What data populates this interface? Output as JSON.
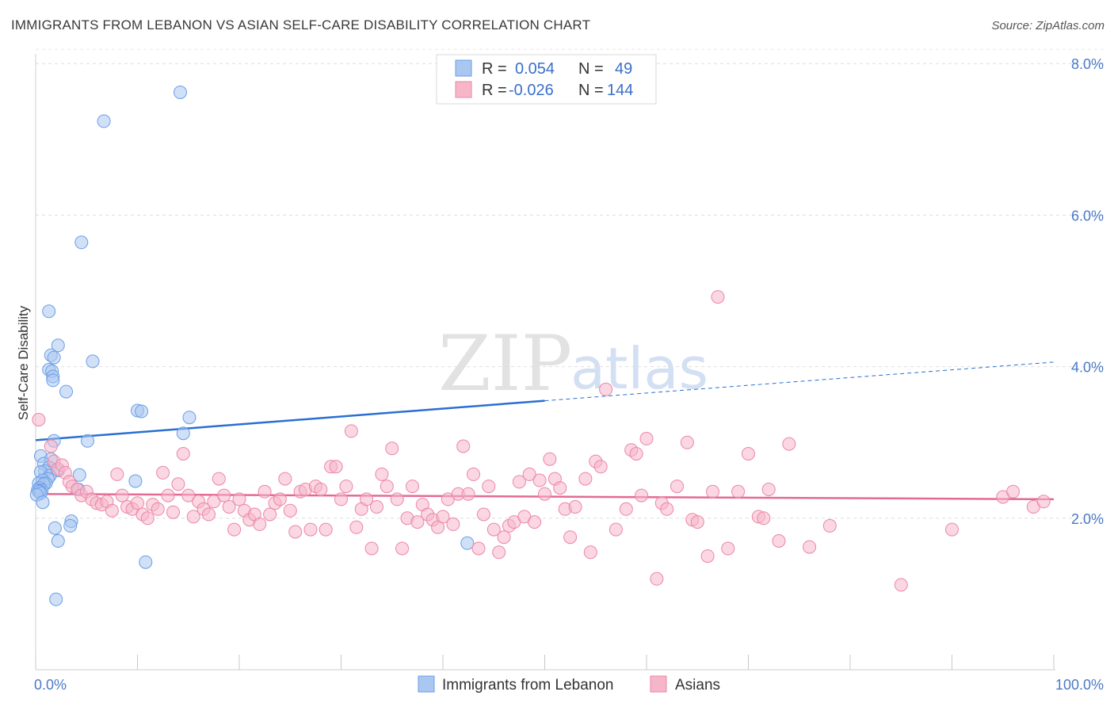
{
  "header": {
    "title": "IMMIGRANTS FROM LEBANON VS ASIAN SELF-CARE DISABILITY CORRELATION CHART",
    "source": "Source: ZipAtlas.com"
  },
  "watermark": {
    "zip": "ZIP",
    "atlas": "atlas"
  },
  "legend": {
    "rows": [
      {
        "r_label": "R =",
        "r_value": "0.054",
        "n_label": "N =",
        "n_value": "49",
        "color": "#a9c7f0"
      },
      {
        "r_label": "R =",
        "r_value": "-0.026",
        "n_label": "N =",
        "n_value": "144",
        "color": "#f6b6ca"
      }
    ]
  },
  "bottom_legend": {
    "items": [
      {
        "label": "Immigrants from Lebanon",
        "color": "#a9c7f0"
      },
      {
        "label": "Asians",
        "color": "#f6b6ca"
      }
    ]
  },
  "chart_data": {
    "type": "scatter",
    "title": "IMMIGRANTS FROM LEBANON VS ASIAN SELF-CARE DISABILITY CORRELATION CHART",
    "xlabel": "",
    "ylabel": "Self-Care Disability",
    "xlim": [
      0,
      100
    ],
    "ylim": [
      0,
      8.3
    ],
    "x_tick_labels": [
      "0.0%",
      "100.0%"
    ],
    "y_ticks": [
      2.0,
      4.0,
      6.0,
      8.0
    ],
    "y_tick_labels": [
      "2.0%",
      "4.0%",
      "6.0%",
      "8.0%"
    ],
    "grid": true,
    "series": [
      {
        "name": "Immigrants from Lebanon",
        "color": "#6a9ee8",
        "fill": "#a9c7f0",
        "points": [
          [
            14.2,
            7.62
          ],
          [
            6.7,
            7.24
          ],
          [
            4.5,
            5.64
          ],
          [
            1.3,
            4.73
          ],
          [
            2.2,
            4.28
          ],
          [
            1.5,
            4.15
          ],
          [
            1.8,
            4.12
          ],
          [
            5.6,
            4.07
          ],
          [
            1.3,
            3.96
          ],
          [
            1.6,
            3.94
          ],
          [
            1.7,
            3.87
          ],
          [
            1.7,
            3.82
          ],
          [
            3.0,
            3.67
          ],
          [
            10.0,
            3.42
          ],
          [
            10.4,
            3.41
          ],
          [
            15.1,
            3.33
          ],
          [
            14.5,
            3.12
          ],
          [
            1.8,
            3.02
          ],
          [
            5.1,
            3.02
          ],
          [
            0.5,
            2.82
          ],
          [
            1.5,
            2.78
          ],
          [
            0.8,
            2.72
          ],
          [
            1.3,
            2.67
          ],
          [
            2.2,
            2.63
          ],
          [
            0.9,
            2.62
          ],
          [
            0.5,
            2.61
          ],
          [
            4.3,
            2.57
          ],
          [
            1.4,
            2.56
          ],
          [
            1.2,
            2.52
          ],
          [
            0.7,
            2.5
          ],
          [
            1.0,
            2.46
          ],
          [
            9.8,
            2.49
          ],
          [
            0.3,
            2.46
          ],
          [
            0.8,
            2.45
          ],
          [
            0.4,
            2.4
          ],
          [
            0.2,
            2.37
          ],
          [
            0.6,
            2.37
          ],
          [
            0.4,
            2.36
          ],
          [
            4.2,
            2.38
          ],
          [
            0.3,
            2.35
          ],
          [
            0.5,
            2.33
          ],
          [
            0.1,
            2.31
          ],
          [
            0.7,
            2.21
          ],
          [
            3.5,
            1.96
          ],
          [
            3.4,
            1.9
          ],
          [
            1.9,
            1.87
          ],
          [
            2.2,
            1.7
          ],
          [
            42.4,
            1.67
          ],
          [
            10.8,
            1.42
          ],
          [
            2.0,
            0.93
          ]
        ],
        "trend": {
          "x_start": 0,
          "y_start": 3.03,
          "x_solid_end": 50,
          "y_solid_end": 3.55,
          "x_end": 100,
          "y_end": 4.06
        }
      },
      {
        "name": "Asians",
        "color": "#ec86a6",
        "fill": "#f6b6ca",
        "points": [
          [
            0.3,
            3.3
          ],
          [
            1.5,
            2.95
          ],
          [
            1.8,
            2.75
          ],
          [
            2.2,
            2.65
          ],
          [
            2.6,
            2.7
          ],
          [
            2.9,
            2.6
          ],
          [
            3.3,
            2.48
          ],
          [
            3.6,
            2.42
          ],
          [
            4.1,
            2.38
          ],
          [
            4.5,
            2.3
          ],
          [
            5.0,
            2.35
          ],
          [
            5.5,
            2.25
          ],
          [
            6.0,
            2.2
          ],
          [
            6.5,
            2.18
          ],
          [
            7.0,
            2.22
          ],
          [
            7.5,
            2.1
          ],
          [
            8.0,
            2.58
          ],
          [
            8.5,
            2.3
          ],
          [
            9.0,
            2.15
          ],
          [
            9.5,
            2.12
          ],
          [
            10.0,
            2.2
          ],
          [
            10.5,
            2.05
          ],
          [
            11.0,
            2.0
          ],
          [
            11.5,
            2.18
          ],
          [
            12.0,
            2.12
          ],
          [
            12.5,
            2.6
          ],
          [
            13.0,
            2.3
          ],
          [
            13.5,
            2.08
          ],
          [
            14.0,
            2.45
          ],
          [
            14.5,
            2.85
          ],
          [
            15.0,
            2.3
          ],
          [
            15.5,
            2.02
          ],
          [
            16.0,
            2.22
          ],
          [
            16.5,
            2.12
          ],
          [
            17.0,
            2.05
          ],
          [
            17.5,
            2.22
          ],
          [
            18.0,
            2.52
          ],
          [
            18.5,
            2.3
          ],
          [
            19.0,
            2.15
          ],
          [
            19.5,
            1.85
          ],
          [
            20.0,
            2.25
          ],
          [
            20.5,
            2.1
          ],
          [
            21.0,
            1.98
          ],
          [
            21.5,
            2.05
          ],
          [
            22.0,
            1.92
          ],
          [
            22.5,
            2.35
          ],
          [
            23.0,
            2.05
          ],
          [
            23.5,
            2.2
          ],
          [
            24.0,
            2.25
          ],
          [
            24.5,
            2.52
          ],
          [
            25.0,
            2.1
          ],
          [
            25.5,
            1.82
          ],
          [
            26.0,
            2.35
          ],
          [
            26.5,
            2.38
          ],
          [
            27.0,
            1.85
          ],
          [
            27.5,
            2.42
          ],
          [
            28.0,
            2.38
          ],
          [
            28.5,
            1.85
          ],
          [
            29.0,
            2.68
          ],
          [
            29.5,
            2.68
          ],
          [
            30.0,
            2.25
          ],
          [
            30.5,
            2.42
          ],
          [
            31.0,
            3.15
          ],
          [
            31.5,
            1.88
          ],
          [
            32.0,
            2.12
          ],
          [
            32.5,
            2.25
          ],
          [
            33.0,
            1.6
          ],
          [
            33.5,
            2.15
          ],
          [
            34.0,
            2.58
          ],
          [
            34.5,
            2.42
          ],
          [
            35.0,
            2.92
          ],
          [
            35.5,
            2.25
          ],
          [
            36.0,
            1.6
          ],
          [
            36.5,
            2.0
          ],
          [
            37.0,
            2.42
          ],
          [
            37.5,
            1.95
          ],
          [
            38.0,
            2.18
          ],
          [
            38.5,
            2.05
          ],
          [
            39.0,
            1.98
          ],
          [
            39.5,
            1.88
          ],
          [
            40.0,
            2.02
          ],
          [
            40.5,
            2.25
          ],
          [
            41.0,
            1.92
          ],
          [
            41.5,
            2.32
          ],
          [
            42.0,
            2.95
          ],
          [
            42.5,
            2.32
          ],
          [
            43.0,
            2.58
          ],
          [
            43.5,
            1.6
          ],
          [
            44.0,
            2.05
          ],
          [
            44.5,
            2.42
          ],
          [
            45.0,
            1.85
          ],
          [
            45.5,
            1.55
          ],
          [
            46.0,
            1.75
          ],
          [
            46.5,
            1.9
          ],
          [
            47.0,
            1.95
          ],
          [
            47.5,
            2.48
          ],
          [
            48.0,
            2.02
          ],
          [
            48.5,
            2.58
          ],
          [
            49.0,
            1.95
          ],
          [
            49.5,
            2.5
          ],
          [
            50.0,
            2.32
          ],
          [
            50.5,
            2.78
          ],
          [
            51.0,
            2.52
          ],
          [
            51.5,
            2.4
          ],
          [
            52.0,
            2.12
          ],
          [
            52.5,
            1.75
          ],
          [
            53.0,
            2.15
          ],
          [
            54.0,
            2.52
          ],
          [
            54.5,
            1.55
          ],
          [
            55.0,
            2.75
          ],
          [
            55.5,
            2.68
          ],
          [
            56.0,
            3.7
          ],
          [
            57.0,
            1.85
          ],
          [
            58.0,
            2.12
          ],
          [
            58.5,
            2.9
          ],
          [
            59.0,
            2.85
          ],
          [
            59.5,
            2.3
          ],
          [
            60.0,
            3.05
          ],
          [
            61.0,
            1.2
          ],
          [
            61.5,
            2.2
          ],
          [
            62.0,
            2.12
          ],
          [
            63.0,
            2.42
          ],
          [
            64.0,
            3.0
          ],
          [
            64.5,
            1.98
          ],
          [
            65.0,
            1.95
          ],
          [
            66.0,
            1.5
          ],
          [
            66.5,
            2.35
          ],
          [
            67.0,
            4.92
          ],
          [
            68.0,
            1.6
          ],
          [
            69.0,
            2.35
          ],
          [
            70.0,
            2.85
          ],
          [
            71.0,
            2.02
          ],
          [
            71.5,
            2.0
          ],
          [
            72.0,
            2.38
          ],
          [
            73.0,
            1.7
          ],
          [
            74.0,
            2.98
          ],
          [
            76.0,
            1.62
          ],
          [
            78.0,
            1.9
          ],
          [
            85.0,
            1.12
          ],
          [
            90.0,
            1.85
          ],
          [
            95.0,
            2.28
          ],
          [
            98.0,
            2.15
          ],
          [
            99.0,
            2.22
          ],
          [
            96.0,
            2.35
          ]
        ],
        "trend": {
          "x_start": 0,
          "y_start": 2.32,
          "x_end": 100,
          "y_end": 2.25
        }
      }
    ]
  }
}
